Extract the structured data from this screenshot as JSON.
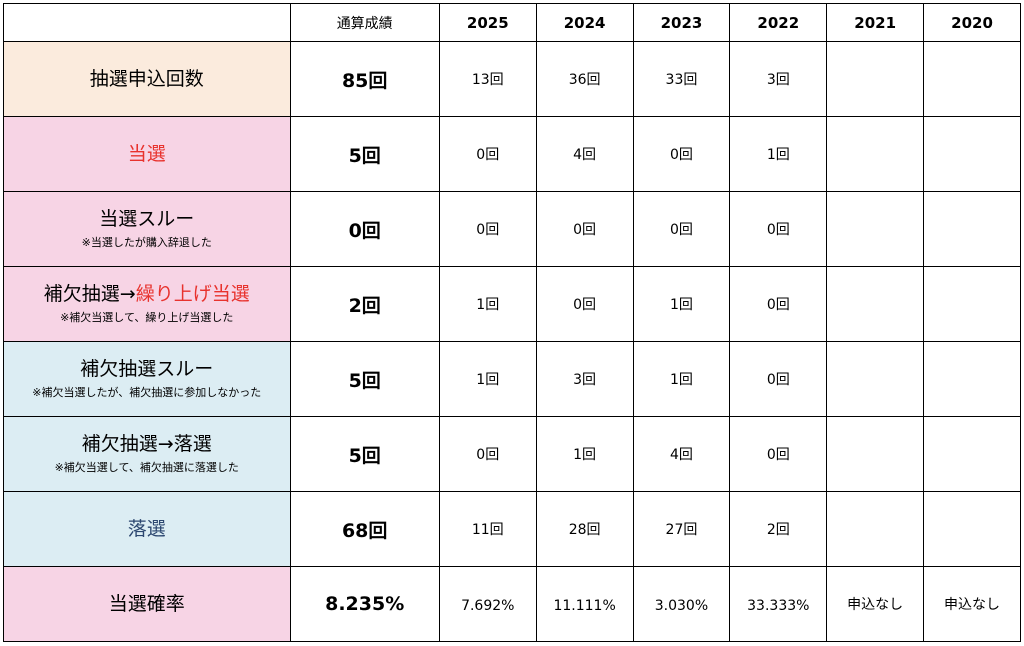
{
  "colors": {
    "applications_bg": "#fbebdd",
    "win_bg": "#f7d4e5",
    "waitlist_skip_bg": "#dcedf3",
    "lose_bg": "#dcedf3",
    "red_text": "#e8322d",
    "navy_text": "#2c4770"
  },
  "header": {
    "total_label": "通算成績",
    "years": [
      "2025",
      "2024",
      "2023",
      "2022",
      "2021",
      "2020"
    ]
  },
  "rows": [
    {
      "label": "抽選申込回数",
      "note": "",
      "total": "85回",
      "values": [
        "13回",
        "36回",
        "33回",
        "3回",
        "",
        ""
      ]
    },
    {
      "label": "当選",
      "note": "",
      "total": "5回",
      "values": [
        "0回",
        "4回",
        "0回",
        "1回",
        "",
        ""
      ]
    },
    {
      "label": "当選スルー",
      "note": "※当選したが購入辞退した",
      "total": "0回",
      "values": [
        "0回",
        "0回",
        "0回",
        "0回",
        "",
        ""
      ]
    },
    {
      "label_prefix": "補欠抽選→",
      "label_highlight": "繰り上げ当選",
      "note": "※補欠当選して、繰り上げ当選した",
      "total": "2回",
      "values": [
        "1回",
        "0回",
        "1回",
        "0回",
        "",
        ""
      ]
    },
    {
      "label": "補欠抽選スルー",
      "note": "※補欠当選したが、補欠抽選に参加しなかった",
      "total": "5回",
      "values": [
        "1回",
        "3回",
        "1回",
        "0回",
        "",
        ""
      ]
    },
    {
      "label": "補欠抽選→落選",
      "note": "※補欠当選して、補欠抽選に落選した",
      "total": "5回",
      "values": [
        "0回",
        "1回",
        "4回",
        "0回",
        "",
        ""
      ]
    },
    {
      "label": "落選",
      "note": "",
      "total": "68回",
      "values": [
        "11回",
        "28回",
        "27回",
        "2回",
        "",
        ""
      ]
    },
    {
      "label": "当選確率",
      "note": "",
      "total": "8.235%",
      "values": [
        "7.692%",
        "11.111%",
        "3.030%",
        "33.333%",
        "申込なし",
        "申込なし"
      ]
    }
  ]
}
